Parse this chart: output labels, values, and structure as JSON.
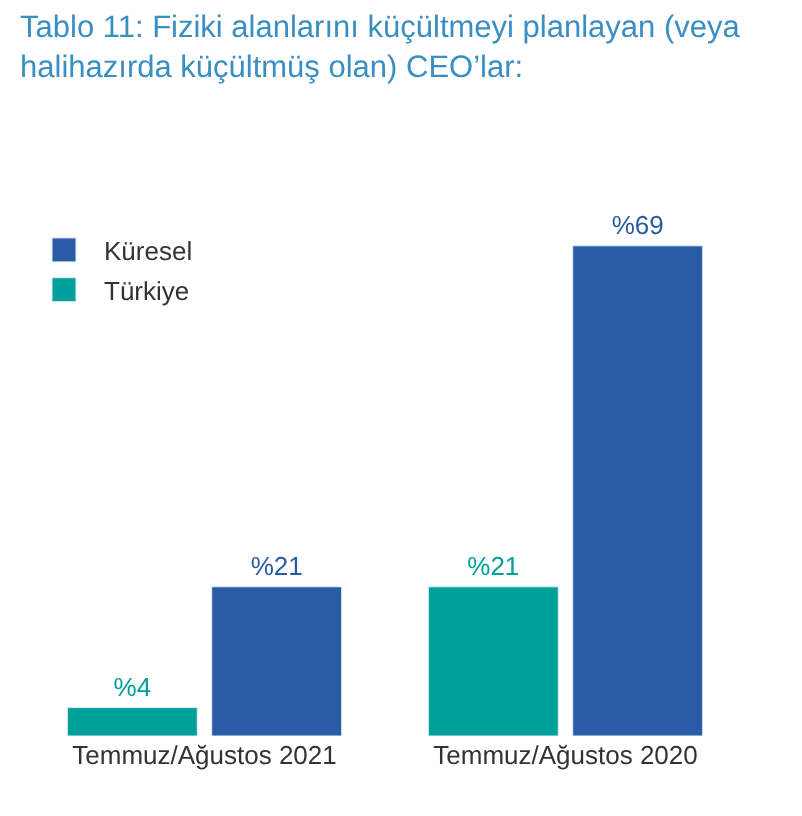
{
  "chart_data": {
    "type": "bar",
    "title": "Tablo 11: Fiziki alanlarını küçültmeyi planlayan (veya halihazırda küçültmüş olan) CEO’lar:",
    "categories": [
      "Temmuz/Ağustos 2021",
      "Temmuz/Ağustos 2020"
    ],
    "series": [
      {
        "name": "Türkiye",
        "color": "#00a19a",
        "values": [
          4,
          21
        ],
        "value_labels": [
          "%4",
          "%21"
        ]
      },
      {
        "name": "Küresel",
        "color": "#2a5ca5",
        "values": [
          21,
          69
        ],
        "value_labels": [
          "%21",
          "%69"
        ]
      }
    ],
    "legend": "top left"
  }
}
